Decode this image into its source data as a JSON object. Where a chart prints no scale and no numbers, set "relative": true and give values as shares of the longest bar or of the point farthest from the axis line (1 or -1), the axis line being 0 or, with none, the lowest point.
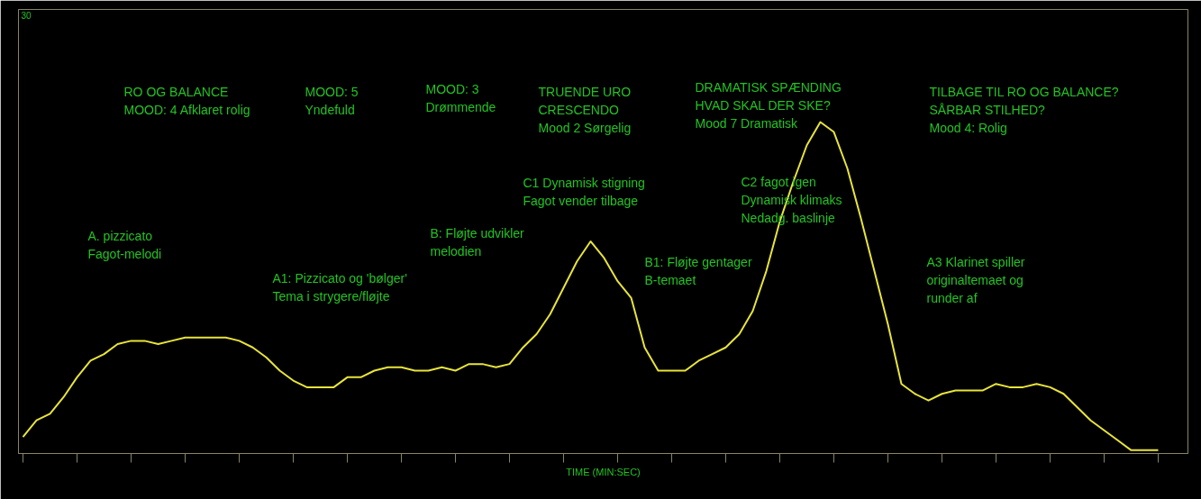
{
  "chart_data": {
    "type": "line",
    "relative": true,
    "xlabel": "TIME (MIN:SEC)",
    "categories": [
      null,
      null,
      null,
      null,
      null,
      null,
      null,
      null,
      null,
      null,
      null,
      null,
      null,
      null,
      null,
      null,
      null,
      null,
      null,
      null,
      null,
      null,
      null,
      null,
      null,
      null,
      null,
      null,
      null,
      null,
      null,
      null,
      null,
      null,
      null,
      null,
      null,
      null,
      null,
      null,
      null,
      null,
      null,
      null,
      null,
      null,
      null,
      null,
      null,
      null,
      null,
      null,
      null,
      null,
      null,
      null,
      null,
      null,
      null,
      null,
      null,
      null,
      null,
      null,
      null,
      null,
      null,
      null,
      null,
      null,
      null,
      null,
      null,
      null,
      null,
      null,
      null,
      null,
      null,
      null,
      null,
      null,
      null,
      null,
      null
    ],
    "series": [
      {
        "color": "#e8e43a",
        "values": [
          0.05,
          0.1,
          0.12,
          0.17,
          0.23,
          0.28,
          0.3,
          0.33,
          0.34,
          0.34,
          0.33,
          0.34,
          0.35,
          0.35,
          0.35,
          0.35,
          0.34,
          0.32,
          0.29,
          0.25,
          0.22,
          0.2,
          0.2,
          0.2,
          0.23,
          0.23,
          0.25,
          0.26,
          0.26,
          0.25,
          0.25,
          0.26,
          0.25,
          0.27,
          0.27,
          0.26,
          0.27,
          0.32,
          0.36,
          0.42,
          0.5,
          0.58,
          0.64,
          0.59,
          0.52,
          0.47,
          0.32,
          0.25,
          0.25,
          0.25,
          0.28,
          0.3,
          0.32,
          0.36,
          0.43,
          0.55,
          0.7,
          0.82,
          0.93,
          1,
          0.97,
          0.86,
          0.71,
          0.55,
          0.39,
          0.21,
          0.18,
          0.16,
          0.18,
          0.19,
          0.19,
          0.19,
          0.21,
          0.2,
          0.2,
          0.21,
          0.2,
          0.18,
          0.14,
          0.1,
          0.07,
          0.04,
          0.01,
          0.01,
          0.01
        ]
      }
    ],
    "annotations": [
      "30",
      "RO OG BALANCE\nMOOD: 4 Afklaret rolig",
      "MOOD: 5\nYndefuld",
      "MOOD: 3\nDrømmende",
      "TRUENDE URO\nCRESCENDO\nMood 2 Sørgelig",
      "DRAMATISK SPÆNDING\nHVAD SKAL DER SKE?\nMood 7 Dramatisk",
      "TILBAGE TIL RO OG BALANCE?\nSÅRBAR STILHED?\nMood 4: Rolig",
      "A. pizzicato\nFagot-melodi",
      "A1: Pizzicato og 'bølger'\nTema i strygere/fløjte",
      "B: Fløjte udvikler\nmelodien",
      "C1 Dynamisk stigning\nFagot vender tilbage",
      "B1: Fløjte gentager\nB-temaet",
      "C2 fagot igen\nDynamisk klimaks\nNedadg. baslinje",
      "A3 Klarinet spiller\noriginaltemaet og\nrunder af"
    ]
  }
}
